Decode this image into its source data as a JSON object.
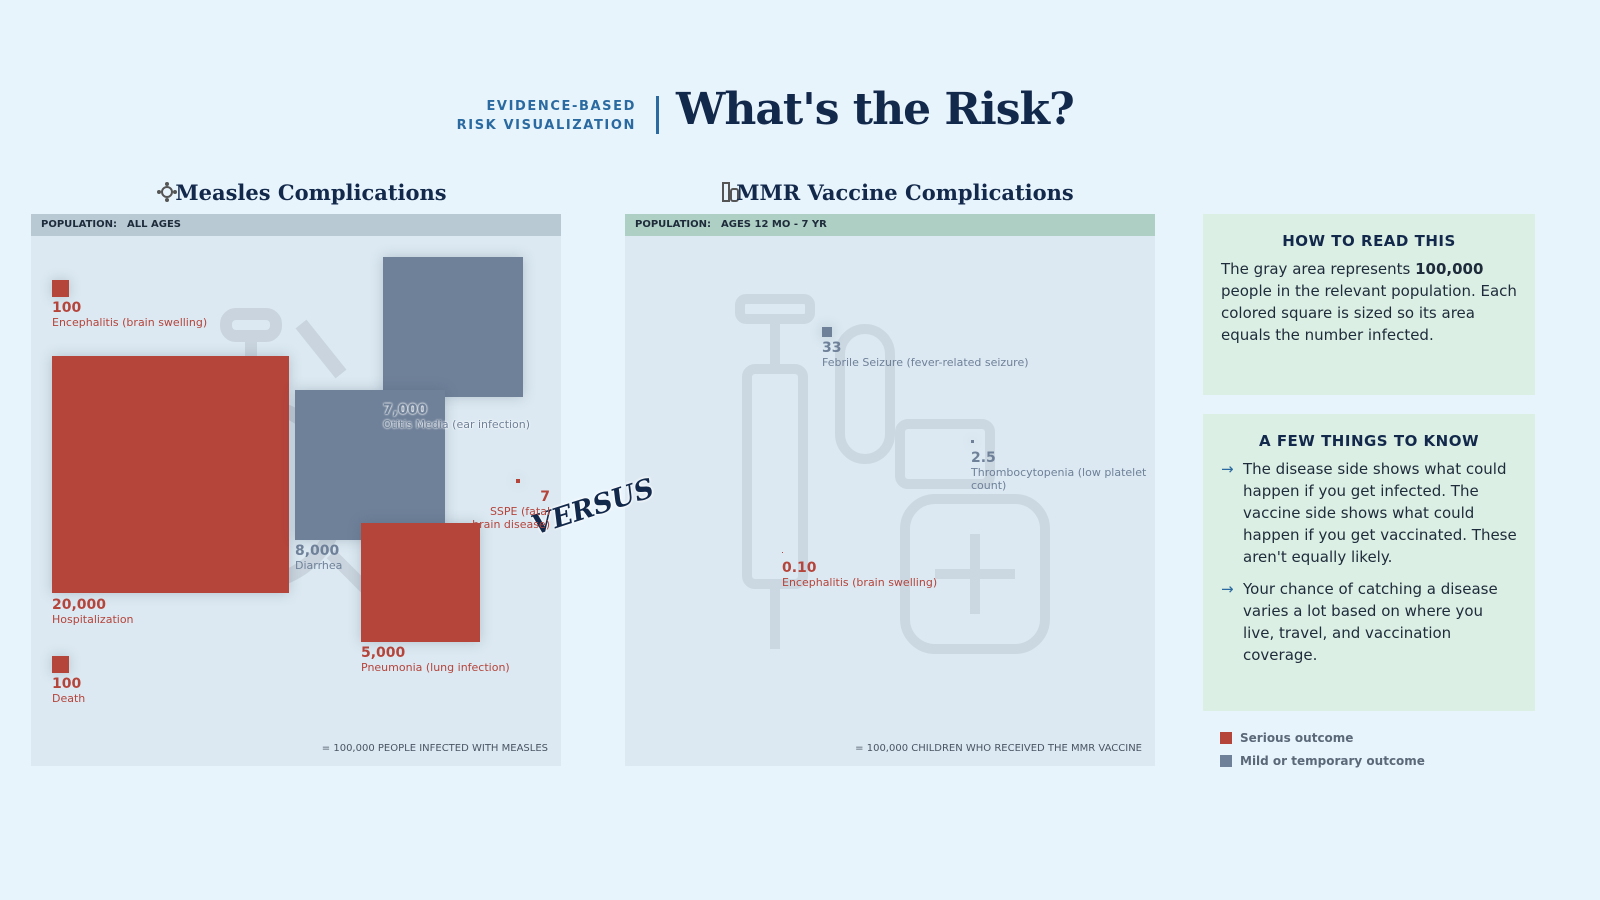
{
  "header": {
    "kicker": [
      "EVIDENCE-BASED",
      "RISK VISUALIZATION"
    ],
    "title": "What's the Risk?"
  },
  "chart_data": [
    {
      "type": "area-squares",
      "title": "Measles Complications",
      "population_label": "POPULATION:",
      "population": "ALL AGES",
      "total": 100000,
      "footnote": "= 100,000 PEOPLE INFECTED WITH MEASLES",
      "items": [
        {
          "value": 100,
          "label": "Encephalitis (brain swelling)",
          "color": "#b5443b"
        },
        {
          "value": 20000,
          "value_label": "20,000",
          "label": "Hospitalization",
          "color": "#b5443b"
        },
        {
          "value": 7000,
          "value_label": "7,000",
          "label": "Otitis Media (ear infection)",
          "color": "#6f8199"
        },
        {
          "value": 8000,
          "value_label": "8,000",
          "label": "Diarrhea",
          "color": "#6f8199"
        },
        {
          "value": 5000,
          "value_label": "5,000",
          "label": "Pneumonia (lung infection)",
          "color": "#b5443b"
        },
        {
          "value": 7,
          "label": "SSPE (fatal brain disease)",
          "color": "#b5443b"
        },
        {
          "value": 100,
          "label": "Death",
          "color": "#b5443b"
        }
      ]
    },
    {
      "type": "area-squares",
      "title": "MMR Vaccine Complications",
      "population_label": "POPULATION:",
      "population": "AGES 12 MO - 7 YR",
      "total": 100000,
      "footnote": "= 100,000 CHILDREN WHO RECEIVED THE MMR VACCINE",
      "items": [
        {
          "value": 33,
          "label": "Febrile Seizure (fever-related seizure)",
          "color": "#6f8199"
        },
        {
          "value": 2.5,
          "label": "Thrombocytopenia (low platelet count)",
          "color": "#6f8199"
        },
        {
          "value": 0.1,
          "value_label": "0.10",
          "label": "Encephalitis (brain swelling)",
          "color": "#b5443b"
        }
      ]
    }
  ],
  "versus": "VERSUS",
  "how_to_read": {
    "title": "HOW TO READ THIS",
    "text_before": "The gray area represents ",
    "text_bold": "100,000",
    "text_after": " people in the relevant population. Each colored square is sized so its area equals the number infected."
  },
  "things_to_know": {
    "title": "A FEW THINGS TO KNOW",
    "points": [
      "The disease side shows what could happen if you get infected. The vaccine side shows what could happen if you get vaccinated. These aren't equally likely.",
      "Your chance of catching a disease varies a lot based on where you live, travel, and vaccination coverage."
    ]
  },
  "legend": [
    {
      "name": "Serious outcome",
      "color": "#b5443b"
    },
    {
      "name": "Mild or temporary outcome",
      "color": "#6f8199"
    }
  ]
}
